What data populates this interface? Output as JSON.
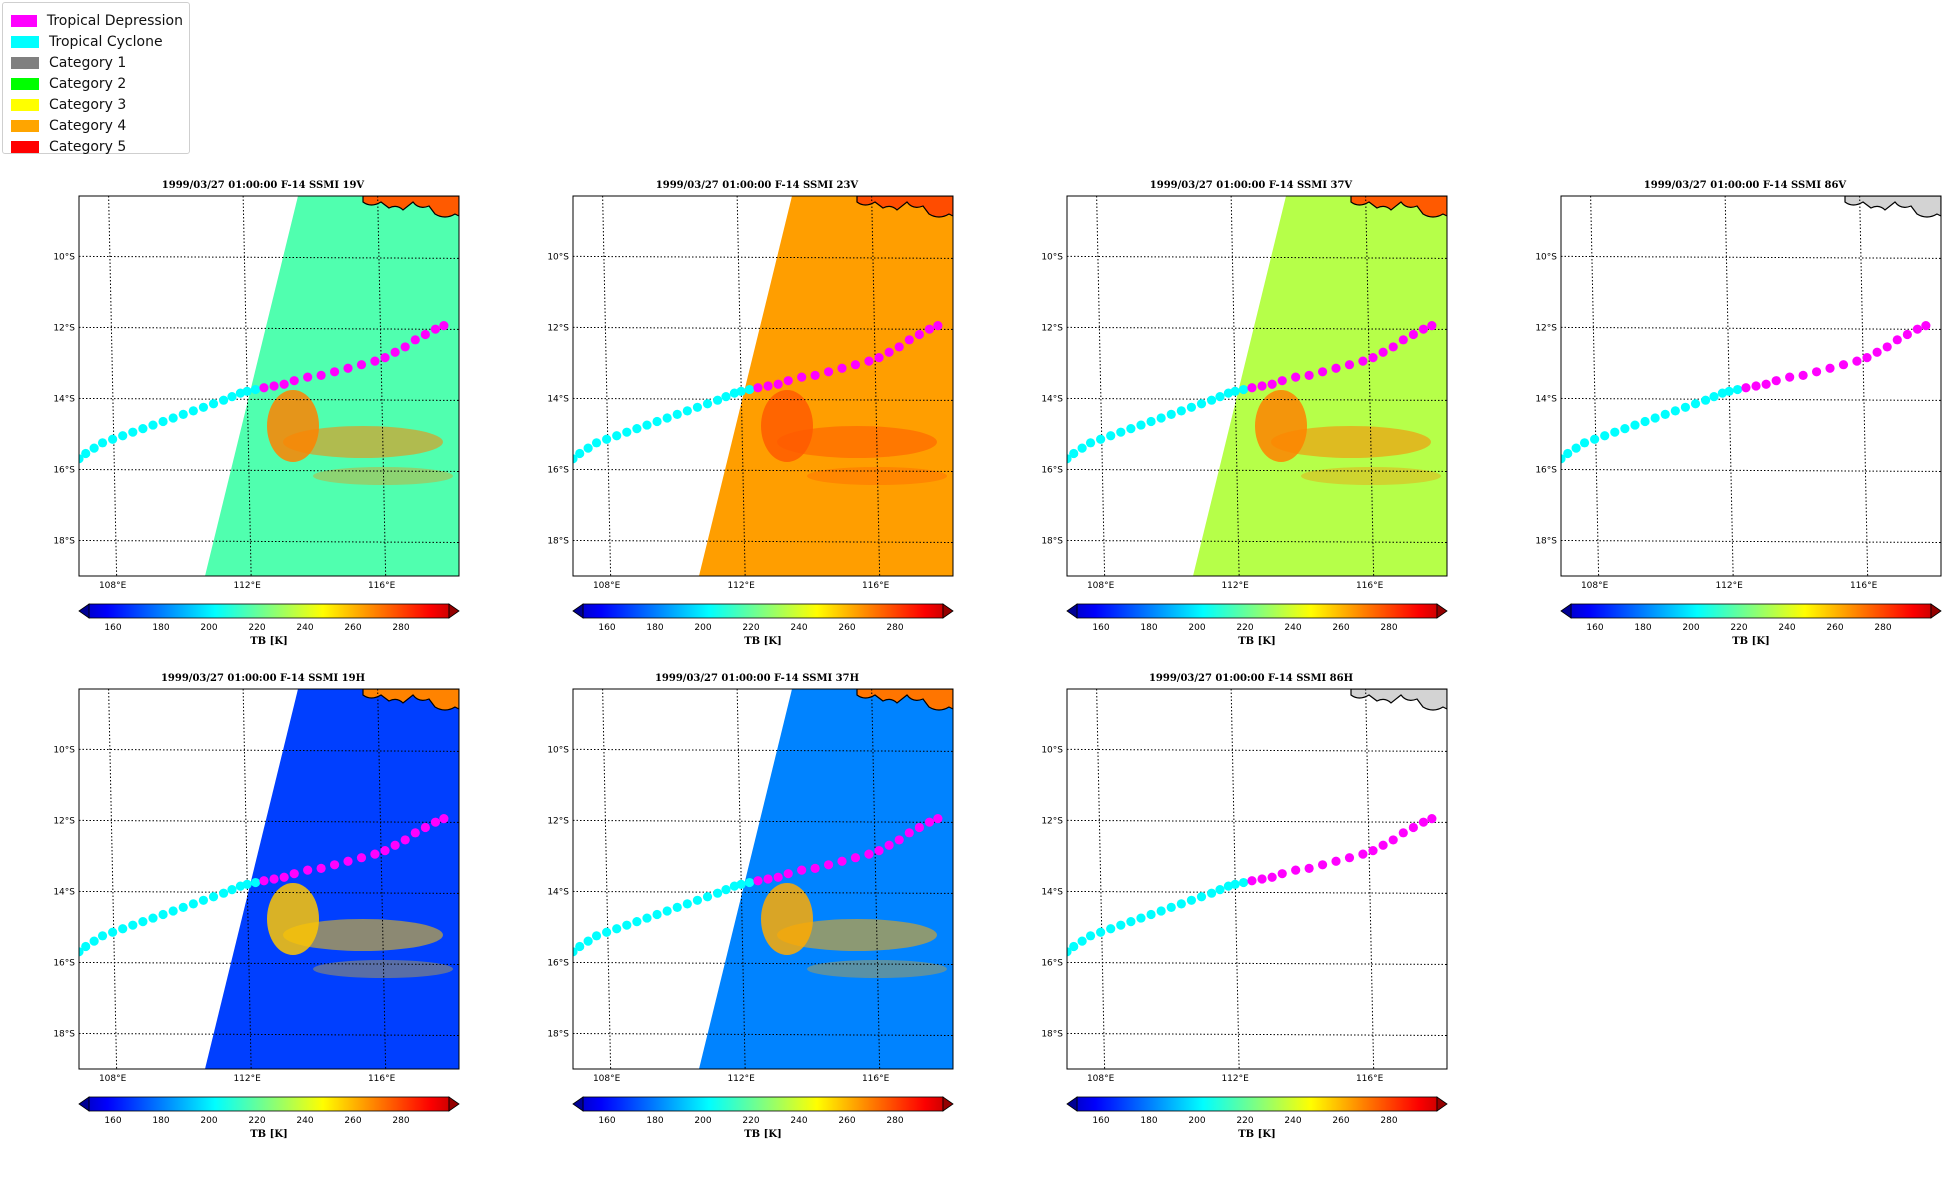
{
  "legend": {
    "items": [
      {
        "label": "Tropical Depression",
        "color": "#ff00ff"
      },
      {
        "label": "Tropical Cyclone",
        "color": "#00ffff"
      },
      {
        "label": "Category 1",
        "color": "#808080"
      },
      {
        "label": "Category 2",
        "color": "#00ff00"
      },
      {
        "label": "Category 3",
        "color": "#ffff00"
      },
      {
        "label": "Category 4",
        "color": "#ffa500"
      },
      {
        "label": "Category 5",
        "color": "#ff0000"
      }
    ]
  },
  "colorbar": {
    "label": "TB [K]",
    "ticks": [
      160,
      180,
      200,
      220,
      240,
      260,
      280
    ],
    "range": [
      150,
      300
    ],
    "colormap": "jet",
    "extend": "both"
  },
  "chart_data": [
    {
      "type": "heatmap",
      "title": "1999/03/27 01:00:00  F-14 SSMI 19V",
      "channel": "19V",
      "swath": true,
      "base_tb": 218,
      "storm_tb": 262,
      "land_tb": 268
    },
    {
      "type": "heatmap",
      "title": "1999/03/27 01:00:00  F-14 SSMI 23V",
      "channel": "23V",
      "swath": true,
      "base_tb": 258,
      "storm_tb": 268,
      "land_tb": 270
    },
    {
      "type": "heatmap",
      "title": "1999/03/27 01:00:00  F-14 SSMI 37V",
      "channel": "37V",
      "swath": true,
      "base_tb": 233,
      "storm_tb": 262,
      "land_tb": 268
    },
    {
      "type": "heatmap",
      "title": "1999/03/27 01:00:00  F-14 SSMI 86V",
      "channel": "86V",
      "swath": false
    },
    {
      "type": "heatmap",
      "title": "1999/03/27 01:00:00  F-14 SSMI 19H",
      "channel": "19H",
      "swath": true,
      "base_tb": 178,
      "storm_tb": 252,
      "land_tb": 262
    },
    {
      "type": "heatmap",
      "title": "1999/03/27 01:00:00  F-14 SSMI 37H",
      "channel": "37H",
      "swath": true,
      "base_tb": 188,
      "storm_tb": 256,
      "land_tb": 264
    },
    {
      "type": "heatmap",
      "title": "1999/03/27 01:00:00  F-14 SSMI 86H",
      "channel": "86H",
      "swath": false
    }
  ],
  "map": {
    "lon_range": [
      107,
      118.3
    ],
    "lat_range": [
      -19,
      -8.3
    ],
    "lon_ticks": [
      108,
      112,
      116
    ],
    "lon_labels": [
      "108°E",
      "112°E",
      "116°E"
    ],
    "lat_ticks": [
      -10,
      -12,
      -14,
      -16,
      -18
    ],
    "lat_labels": [
      "10°S",
      "12°S",
      "14°S",
      "16°S",
      "18°S"
    ]
  },
  "track": {
    "tropical_cyclone": [
      [
        107.0,
        -15.7
      ],
      [
        107.2,
        -15.55
      ],
      [
        107.45,
        -15.4
      ],
      [
        107.7,
        -15.25
      ],
      [
        108.0,
        -15.15
      ],
      [
        108.3,
        -15.05
      ],
      [
        108.6,
        -14.95
      ],
      [
        108.9,
        -14.85
      ],
      [
        109.2,
        -14.75
      ],
      [
        109.5,
        -14.65
      ],
      [
        109.8,
        -14.55
      ],
      [
        110.1,
        -14.45
      ],
      [
        110.4,
        -14.35
      ],
      [
        110.7,
        -14.25
      ],
      [
        111.0,
        -14.15
      ],
      [
        111.3,
        -14.05
      ],
      [
        111.55,
        -13.95
      ],
      [
        111.8,
        -13.85
      ],
      [
        112.0,
        -13.8
      ],
      [
        112.25,
        -13.75
      ]
    ],
    "tropical_depression": [
      [
        112.5,
        -13.7
      ],
      [
        112.8,
        -13.65
      ],
      [
        113.1,
        -13.6
      ],
      [
        113.4,
        -13.5
      ],
      [
        113.8,
        -13.4
      ],
      [
        114.2,
        -13.35
      ],
      [
        114.6,
        -13.25
      ],
      [
        115.0,
        -13.15
      ],
      [
        115.4,
        -13.05
      ],
      [
        115.8,
        -12.95
      ],
      [
        116.1,
        -12.85
      ],
      [
        116.4,
        -12.7
      ],
      [
        116.7,
        -12.55
      ],
      [
        117.0,
        -12.35
      ],
      [
        117.3,
        -12.2
      ],
      [
        117.6,
        -12.05
      ],
      [
        117.85,
        -11.95
      ]
    ]
  }
}
